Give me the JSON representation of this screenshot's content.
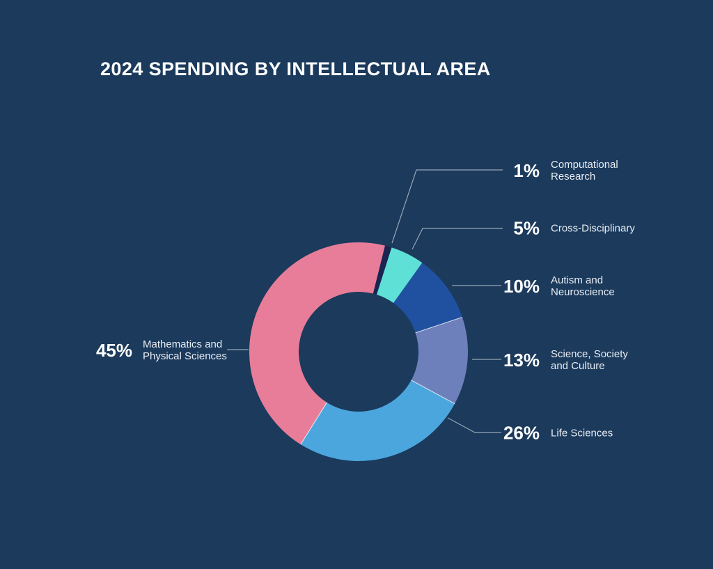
{
  "background_color": "#1B3A5C",
  "chart_data": {
    "type": "pie",
    "subtype": "donut",
    "title": "2024 SPENDING BY INTELLECTUAL AREA",
    "title_color": "#FFFFFF",
    "legend_position": "callouts-right-and-left",
    "start_angle_deg_clockwise_from_12": 14,
    "separator_after_segments": [
      2,
      3,
      4
    ],
    "segments": [
      {
        "label": "Computational Research",
        "value_pct": 1,
        "display_pct": "1%",
        "color": "#1B2450",
        "label_lines": [
          "Computational",
          "Research"
        ]
      },
      {
        "label": "Cross-Disciplinary",
        "value_pct": 5,
        "display_pct": "5%",
        "color": "#5FE0D6",
        "label_lines": [
          "Cross-Disciplinary"
        ]
      },
      {
        "label": "Autism and Neuroscience",
        "value_pct": 10,
        "display_pct": "10%",
        "color": "#2050A0",
        "label_lines": [
          "Autism and",
          "Neuroscience"
        ]
      },
      {
        "label": "Science, Society and Culture",
        "value_pct": 13,
        "display_pct": "13%",
        "color": "#6E80BB",
        "label_lines": [
          "Science, Society",
          "and Culture"
        ]
      },
      {
        "label": "Life Sciences",
        "value_pct": 26,
        "display_pct": "26%",
        "color": "#4BA6DE",
        "label_lines": [
          "Life Sciences"
        ]
      },
      {
        "label": "Mathematics and Physical Sciences",
        "value_pct": 45,
        "display_pct": "45%",
        "color": "#E87D9A",
        "label_lines": [
          "Mathematics and",
          "Physical Sciences"
        ]
      }
    ],
    "percent_text_color": "#FFFFFF",
    "label_text_color": "#E9EDF3",
    "leader_line_color": "rgba(255,255,255,0.55)"
  }
}
